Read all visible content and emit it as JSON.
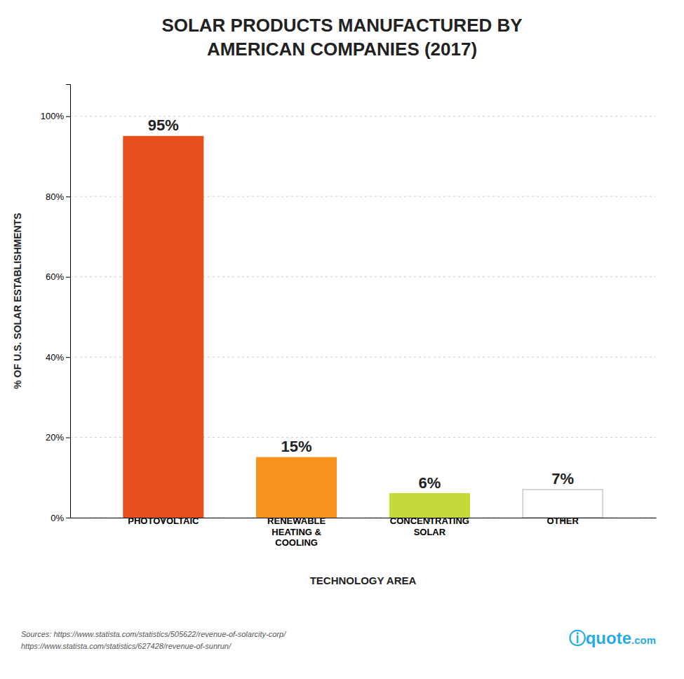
{
  "chart_data": {
    "type": "bar",
    "title": "SOLAR PRODUCTS MANUFACTURED BY\nAMERICAN COMPANIES (2017)",
    "x_label": "TECHNOLOGY AREA",
    "y_label": "% OF U.S. SOLAR ESTABLISHMENTS",
    "categories": [
      "PHOTOVOLTAIC",
      "RENEWABLE\nHEATING &\nCOOLING",
      "CONCENTRATING\nSOLAR",
      "OTHER"
    ],
    "values": [
      95,
      15,
      6,
      7
    ],
    "value_labels": [
      "95%",
      "15%",
      "6%",
      "7%"
    ],
    "data_labels": true,
    "colors": [
      "#E84E1B",
      "#F7941D",
      "#C5D93A",
      "#FFFFFF"
    ],
    "ylim": [
      0,
      108
    ],
    "yticks": [
      {
        "value": 0,
        "label": "0%"
      },
      {
        "value": 20,
        "label": "20%"
      },
      {
        "value": 40,
        "label": "40%"
      },
      {
        "value": 60,
        "label": "60%"
      },
      {
        "value": 80,
        "label": "80%"
      },
      {
        "value": 100,
        "label": "100%"
      }
    ],
    "grid": true,
    "annotations": [
      "Sources: https://www.statista.com/statistics/505622/revenue-of-solarcity-corp/\nhttps://www.statista.com/statistics/627428/revenue-of-sunrun/",
      "ⓘquote",
      ".com"
    ]
  }
}
